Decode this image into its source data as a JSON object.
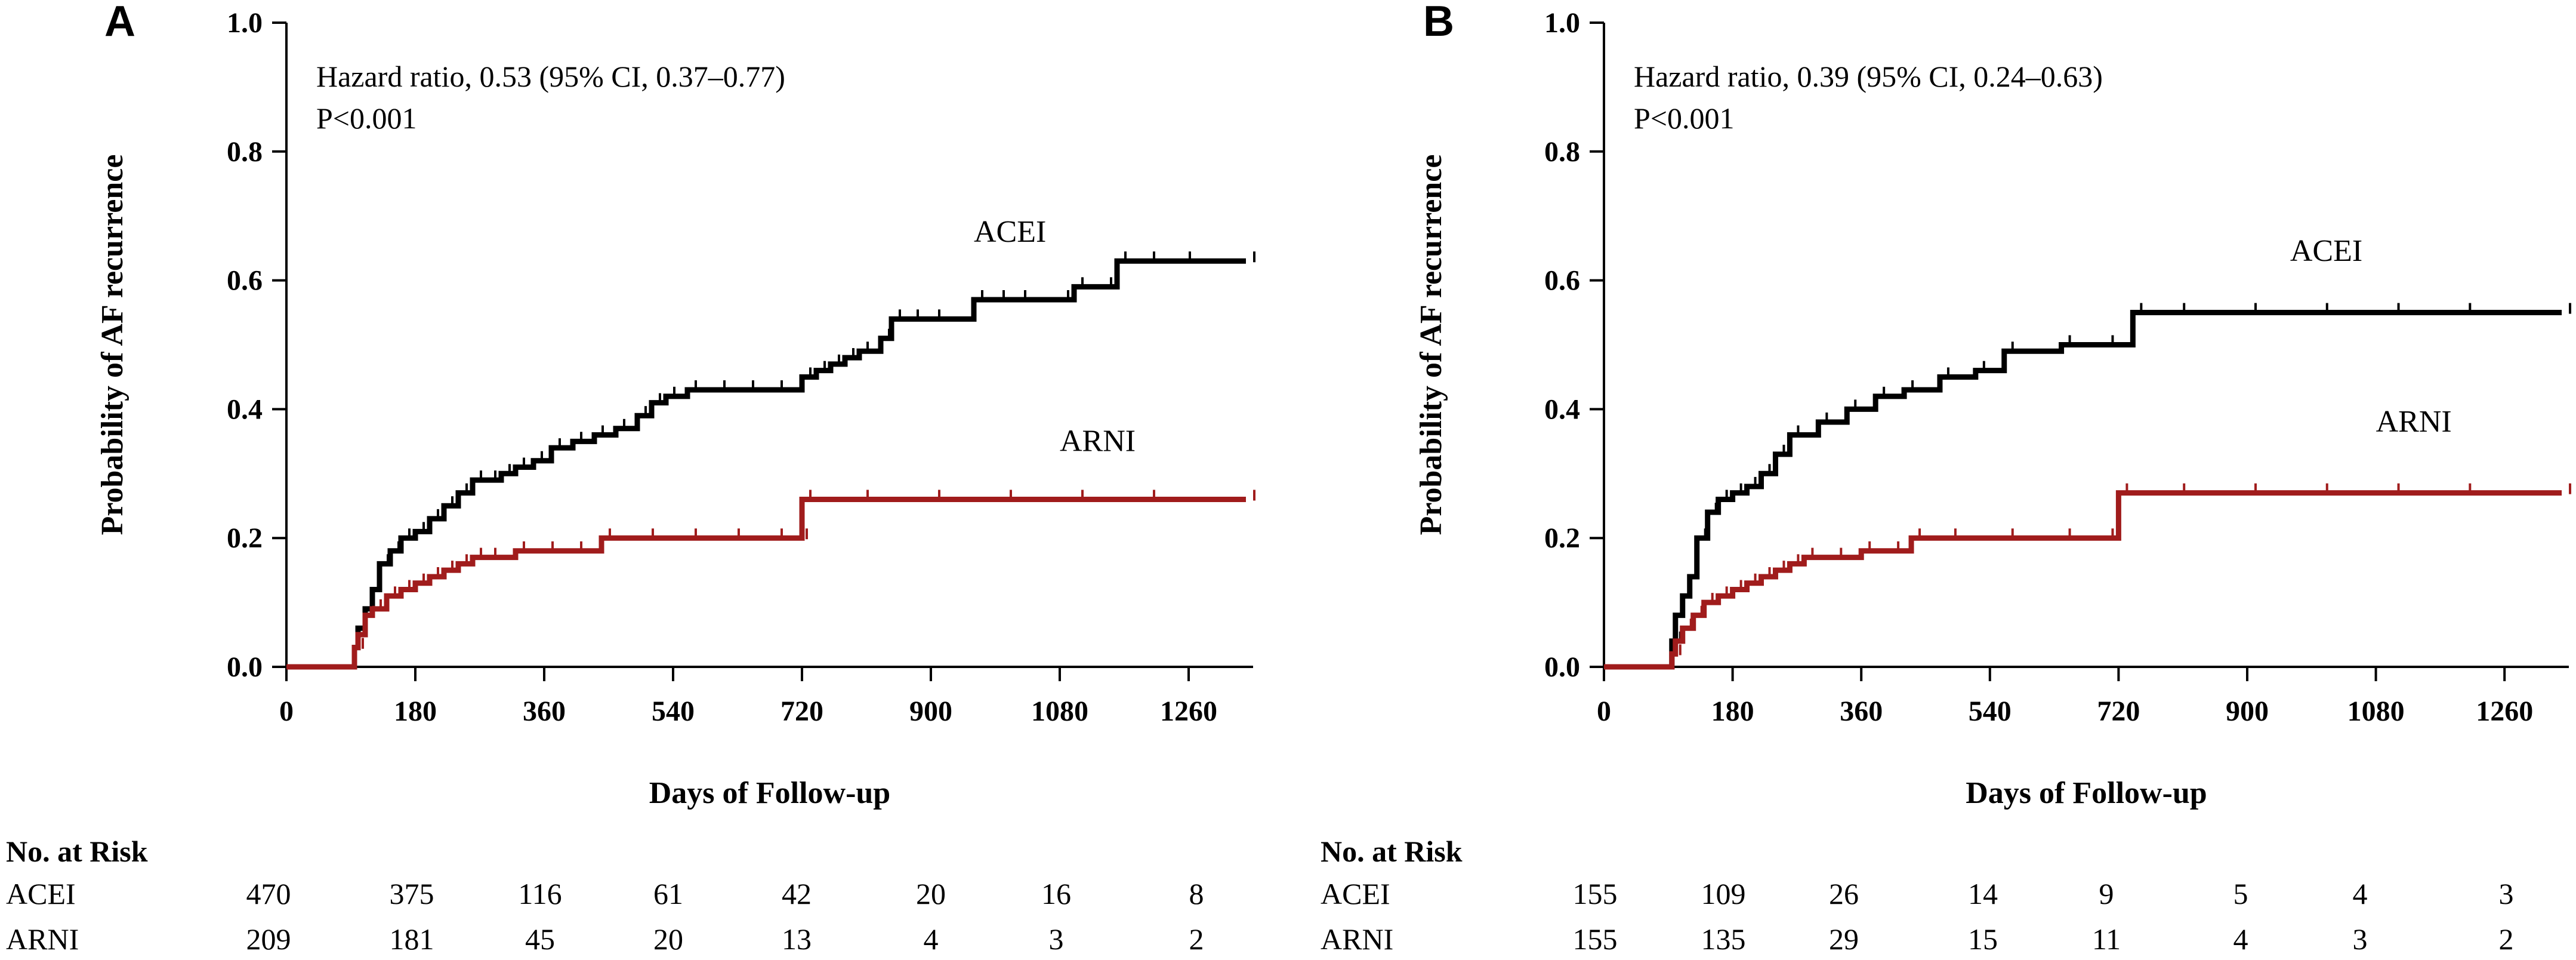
{
  "colors": {
    "ACEI": "#000000",
    "ARNI": "#a01c1c",
    "axis": "#000000"
  },
  "chart_data": [
    {
      "type": "line",
      "panel": "A",
      "title": "",
      "xlabel": "Days of Follow-up",
      "ylabel": "Probability of AF recurrence",
      "xlim": [
        0,
        1350
      ],
      "ylim": [
        0,
        1.0
      ],
      "xticks": [
        0,
        180,
        360,
        540,
        720,
        900,
        1080,
        1260
      ],
      "yticks": [
        "0.0",
        "0.2",
        "0.4",
        "0.6",
        "0.8",
        "1.0"
      ],
      "annotation": [
        "Hazard ratio, 0.53 (95% CI, 0.37–0.77)",
        "P<0.001"
      ],
      "series": [
        {
          "name": "ACEI",
          "x": [
            0,
            90,
            95,
            100,
            110,
            120,
            130,
            145,
            160,
            180,
            200,
            220,
            240,
            260,
            280,
            300,
            320,
            345,
            370,
            400,
            430,
            460,
            490,
            510,
            530,
            560,
            600,
            640,
            680,
            720,
            740,
            760,
            780,
            800,
            830,
            845,
            870,
            900,
            960,
            990,
            1020,
            1080,
            1100,
            1140,
            1160,
            1200,
            1250,
            1340
          ],
          "y": [
            0,
            0,
            0.03,
            0.06,
            0.09,
            0.12,
            0.16,
            0.18,
            0.2,
            0.21,
            0.23,
            0.25,
            0.27,
            0.29,
            0.29,
            0.3,
            0.31,
            0.32,
            0.34,
            0.35,
            0.36,
            0.37,
            0.39,
            0.41,
            0.42,
            0.43,
            0.43,
            0.43,
            0.43,
            0.45,
            0.46,
            0.47,
            0.48,
            0.49,
            0.51,
            0.54,
            0.54,
            0.54,
            0.57,
            0.57,
            0.57,
            0.57,
            0.59,
            0.59,
            0.63,
            0.63,
            0.63,
            0.63
          ],
          "label_at": [
            960,
            0.66
          ]
        },
        {
          "name": "ARNI",
          "x": [
            0,
            90,
            95,
            100,
            110,
            120,
            140,
            160,
            180,
            200,
            220,
            240,
            260,
            280,
            320,
            360,
            400,
            430,
            440,
            500,
            560,
            620,
            680,
            715,
            720,
            800,
            900,
            1000,
            1100,
            1200,
            1340
          ],
          "y": [
            0,
            0,
            0.03,
            0.05,
            0.08,
            0.09,
            0.11,
            0.12,
            0.13,
            0.14,
            0.15,
            0.16,
            0.17,
            0.17,
            0.18,
            0.18,
            0.18,
            0.18,
            0.2,
            0.2,
            0.2,
            0.2,
            0.2,
            0.2,
            0.26,
            0.26,
            0.26,
            0.26,
            0.26,
            0.26,
            0.26
          ],
          "label_at": [
            1080,
            0.335
          ]
        }
      ],
      "no_at_risk": {
        "title": "No. at Risk",
        "rows": [
          {
            "name": "ACEI",
            "values": [
              "470",
              "375",
              "116",
              "61",
              "42",
              "20",
              "16",
              "8"
            ]
          },
          {
            "name": "ARNI",
            "values": [
              "209",
              "181",
              "45",
              "20",
              "13",
              "4",
              "3",
              "2"
            ]
          }
        ]
      }
    },
    {
      "type": "line",
      "panel": "B",
      "title": "",
      "xlabel": "Days of Follow-up",
      "ylabel": "Probability of AF recurrence",
      "xlim": [
        0,
        1350
      ],
      "ylim": [
        0,
        1.0
      ],
      "xticks": [
        0,
        180,
        360,
        540,
        720,
        900,
        1080,
        1260
      ],
      "yticks": [
        "0.0",
        "0.2",
        "0.4",
        "0.6",
        "0.8",
        "1.0"
      ],
      "annotation": [
        "Hazard ratio, 0.39 (95% CI, 0.24–0.63)",
        "P<0.001"
      ],
      "series": [
        {
          "name": "ACEI",
          "x": [
            0,
            90,
            95,
            100,
            110,
            120,
            130,
            145,
            160,
            180,
            200,
            220,
            240,
            260,
            300,
            340,
            380,
            420,
            470,
            520,
            560,
            640,
            700,
            740,
            800,
            900,
            1000,
            1100,
            1200,
            1340
          ],
          "y": [
            0,
            0,
            0.04,
            0.08,
            0.11,
            0.14,
            0.2,
            0.24,
            0.26,
            0.27,
            0.28,
            0.3,
            0.33,
            0.36,
            0.38,
            0.4,
            0.42,
            0.43,
            0.45,
            0.46,
            0.49,
            0.5,
            0.5,
            0.55,
            0.55,
            0.55,
            0.55,
            0.55,
            0.55,
            0.55
          ],
          "label_at": [
            960,
            0.63
          ]
        },
        {
          "name": "ARNI",
          "x": [
            0,
            90,
            95,
            100,
            110,
            125,
            140,
            160,
            180,
            200,
            220,
            240,
            260,
            280,
            320,
            360,
            400,
            430,
            480,
            560,
            640,
            700,
            720,
            800,
            900,
            1000,
            1100,
            1200,
            1340
          ],
          "y": [
            0,
            0,
            0.02,
            0.04,
            0.06,
            0.08,
            0.1,
            0.11,
            0.12,
            0.13,
            0.14,
            0.15,
            0.16,
            0.17,
            0.17,
            0.18,
            0.18,
            0.2,
            0.2,
            0.2,
            0.2,
            0.2,
            0.27,
            0.27,
            0.27,
            0.27,
            0.27,
            0.27,
            0.27
          ],
          "label_at": [
            1080,
            0.365
          ]
        }
      ],
      "no_at_risk": {
        "title": "No. at Risk",
        "rows": [
          {
            "name": "ACEI",
            "values": [
              "155",
              "109",
              "26",
              "14",
              "9",
              "5",
              "4",
              "3"
            ]
          },
          {
            "name": "ARNI",
            "values": [
              "155",
              "135",
              "29",
              "15",
              "11",
              "4",
              "3",
              "2"
            ]
          }
        ]
      }
    }
  ]
}
